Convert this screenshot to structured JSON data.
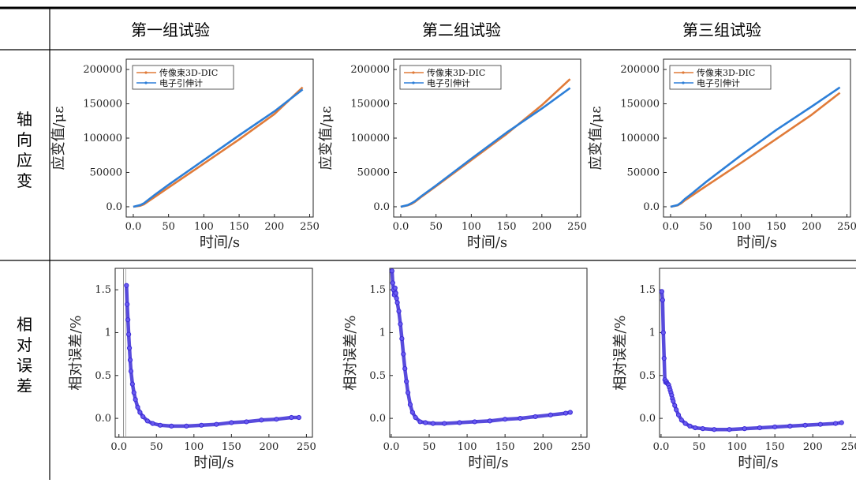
{
  "table": {
    "columns": [
      "第一组试验",
      "第二组试验",
      "第三组试验"
    ],
    "rows": [
      {
        "label": [
          "轴",
          "向",
          "应",
          "变"
        ]
      },
      {
        "label": [
          "相",
          "对",
          "误",
          "差"
        ]
      }
    ]
  },
  "colors": {
    "dic": "#e07b39",
    "ext": "#2d7fd8",
    "err": "#3b2bd6"
  },
  "chart_data": [
    {
      "type": "line",
      "panel": "strain-1",
      "xlabel": "时间/s",
      "ylabel": "应变值/με",
      "xlim": [
        -10,
        255
      ],
      "ylim": [
        -15000,
        215000
      ],
      "xticks": [
        0,
        50,
        100,
        150,
        200,
        250
      ],
      "yticks": [
        0,
        50000,
        100000,
        150000,
        200000
      ],
      "legend": [
        "传像束3D-DIC",
        "电子引伸计"
      ],
      "series": [
        {
          "name": "传像束3D-DIC",
          "x": [
            0,
            10,
            15,
            20,
            30,
            50,
            100,
            150,
            200,
            240
          ],
          "y": [
            0,
            1500,
            3500,
            7000,
            14000,
            28000,
            63000,
            98000,
            135000,
            174000
          ]
        },
        {
          "name": "电子引伸计",
          "x": [
            0,
            10,
            15,
            20,
            30,
            50,
            100,
            150,
            200,
            240
          ],
          "y": [
            0,
            2500,
            5000,
            9000,
            17000,
            32000,
            68000,
            104000,
            139000,
            171000
          ]
        }
      ]
    },
    {
      "type": "line",
      "panel": "strain-2",
      "xlabel": "时间/s",
      "ylabel": "应变值/με",
      "xlim": [
        -10,
        255
      ],
      "ylim": [
        -15000,
        215000
      ],
      "xticks": [
        0,
        50,
        100,
        150,
        200,
        250
      ],
      "yticks": [
        0,
        50000,
        100000,
        150000,
        200000
      ],
      "legend": [
        "传像束3D-DIC",
        "电子引伸计"
      ],
      "series": [
        {
          "name": "传像束3D-DIC",
          "x": [
            0,
            10,
            15,
            20,
            30,
            50,
            100,
            150,
            200,
            240
          ],
          "y": [
            0,
            2000,
            4000,
            7000,
            15000,
            30000,
            68000,
            106000,
            148000,
            186000
          ]
        },
        {
          "name": "电子引伸计",
          "x": [
            0,
            10,
            15,
            20,
            30,
            50,
            100,
            150,
            200,
            240
          ],
          "y": [
            0,
            2500,
            5000,
            8000,
            16000,
            31000,
            70000,
            108000,
            143000,
            173000
          ]
        }
      ]
    },
    {
      "type": "line",
      "panel": "strain-3",
      "xlabel": "时间/s",
      "ylabel": "应变值/με",
      "xlim": [
        -10,
        255
      ],
      "ylim": [
        -15000,
        215000
      ],
      "xticks": [
        0,
        50,
        100,
        150,
        200,
        250
      ],
      "yticks": [
        0,
        50000,
        100000,
        150000,
        200000
      ],
      "legend": [
        "传像束3D-DIC",
        "电子引伸计"
      ],
      "series": [
        {
          "name": "传像束3D-DIC",
          "x": [
            0,
            10,
            15,
            20,
            30,
            50,
            100,
            150,
            200,
            240
          ],
          "y": [
            0,
            2000,
            5000,
            9000,
            16000,
            30000,
            64000,
            99000,
            134000,
            166000
          ]
        },
        {
          "name": "电子引伸计",
          "x": [
            0,
            10,
            15,
            20,
            30,
            50,
            100,
            150,
            200,
            240
          ],
          "y": [
            0,
            2500,
            6000,
            11000,
            19000,
            36000,
            75000,
            112000,
            146000,
            174000
          ]
        }
      ]
    },
    {
      "type": "scatter",
      "panel": "error-1",
      "xlabel": "时间/s",
      "ylabel": "相对误差/%",
      "xlim": [
        -5,
        258
      ],
      "ylim": [
        -0.22,
        1.75
      ],
      "xticks": [
        0,
        50,
        100,
        150,
        200,
        250
      ],
      "yticks": [
        0.0,
        0.5,
        1.0,
        1.5
      ],
      "series": [
        {
          "name": "",
          "x": [
            10,
            11,
            12,
            13,
            14,
            15,
            16,
            18,
            20,
            22,
            25,
            28,
            32,
            38,
            45,
            55,
            70,
            90,
            110,
            130,
            150,
            170,
            190,
            210,
            230,
            240
          ],
          "y": [
            1.55,
            1.33,
            1.15,
            0.98,
            0.82,
            0.68,
            0.55,
            0.4,
            0.3,
            0.22,
            0.13,
            0.07,
            0.02,
            -0.03,
            -0.06,
            -0.08,
            -0.09,
            -0.09,
            -0.08,
            -0.07,
            -0.05,
            -0.04,
            -0.02,
            -0.01,
            0.01,
            0.01
          ]
        }
      ]
    },
    {
      "type": "scatter",
      "panel": "error-2",
      "xlabel": "时间/s",
      "ylabel": "相对误差/%",
      "xlim": [
        -2,
        258
      ],
      "ylim": [
        -0.22,
        1.75
      ],
      "xticks": [
        0,
        50,
        100,
        150,
        200,
        250
      ],
      "yticks": [
        0.0,
        0.5,
        1.0,
        1.5
      ],
      "series": [
        {
          "name": "",
          "x": [
            1,
            2,
            3,
            4,
            5,
            6,
            7,
            8,
            10,
            12,
            14,
            16,
            18,
            20,
            22,
            25,
            28,
            32,
            38,
            45,
            55,
            70,
            90,
            110,
            130,
            150,
            170,
            190,
            210,
            230,
            236
          ],
          "y": [
            1.72,
            1.58,
            1.5,
            1.44,
            1.52,
            1.46,
            1.4,
            1.35,
            1.25,
            1.1,
            0.93,
            0.75,
            0.58,
            0.43,
            0.3,
            0.16,
            0.07,
            0.01,
            -0.04,
            -0.05,
            -0.06,
            -0.06,
            -0.05,
            -0.04,
            -0.03,
            -0.01,
            0.0,
            0.02,
            0.04,
            0.06,
            0.07
          ]
        }
      ]
    },
    {
      "type": "scatter",
      "panel": "error-3",
      "xlabel": "时间/s",
      "ylabel": "相对误差/%",
      "xlim": [
        -2,
        258
      ],
      "ylim": [
        -0.22,
        1.75
      ],
      "xticks": [
        0,
        50,
        100,
        150,
        200,
        250
      ],
      "yticks": [
        0.0,
        0.5,
        1.0,
        1.5
      ],
      "series": [
        {
          "name": "",
          "x": [
            1,
            2,
            3,
            4,
            5,
            6,
            7,
            8,
            9,
            10,
            11,
            12,
            13,
            14,
            15,
            16,
            18,
            20,
            23,
            27,
            32,
            38,
            45,
            55,
            70,
            90,
            110,
            130,
            150,
            170,
            190,
            210,
            230,
            238
          ],
          "y": [
            1.48,
            1.38,
            1.0,
            0.7,
            0.45,
            0.42,
            0.43,
            0.41,
            0.4,
            0.39,
            0.36,
            0.33,
            0.3,
            0.27,
            0.23,
            0.2,
            0.15,
            0.1,
            0.04,
            -0.02,
            -0.06,
            -0.09,
            -0.11,
            -0.12,
            -0.13,
            -0.13,
            -0.12,
            -0.11,
            -0.1,
            -0.09,
            -0.08,
            -0.07,
            -0.06,
            -0.05
          ]
        }
      ]
    }
  ]
}
